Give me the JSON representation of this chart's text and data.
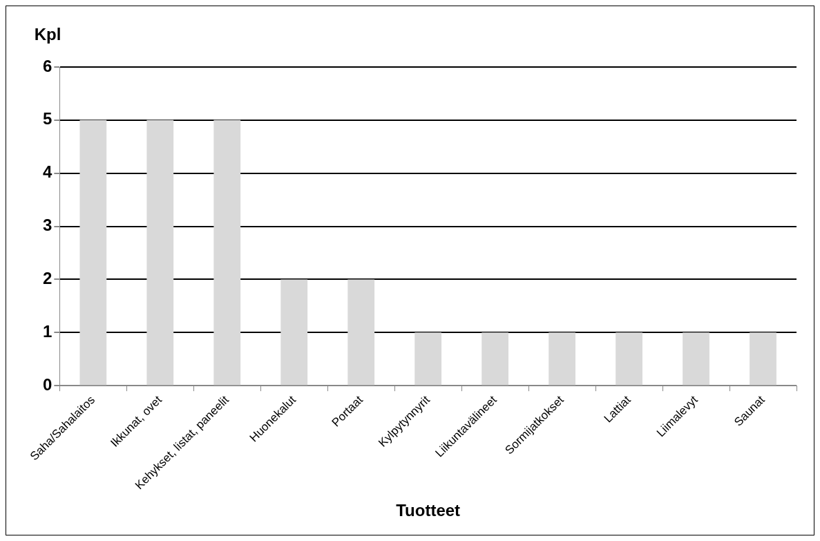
{
  "chart_data": {
    "type": "bar",
    "xlabel": "Tuotteet",
    "ylabel": "Kpl",
    "categories": [
      "Saha/Sahalaitos",
      "Ikkunat, ovet",
      "Kehykset, listat, paneelit",
      "Huonekalut",
      "Portaat",
      "Kylpytynnyrit",
      "Liikuntavälineet",
      "Sormijatkokset",
      "Lattiat",
      "Liimalevyt",
      "Saunat"
    ],
    "values": [
      5,
      5,
      5,
      2,
      2,
      1,
      1,
      1,
      1,
      1,
      1
    ],
    "color": "#d9d9d9",
    "ylim": [
      0,
      6
    ],
    "yticks": [
      0,
      1,
      2,
      3,
      4,
      5,
      6
    ],
    "grid": "y",
    "legend": false
  }
}
